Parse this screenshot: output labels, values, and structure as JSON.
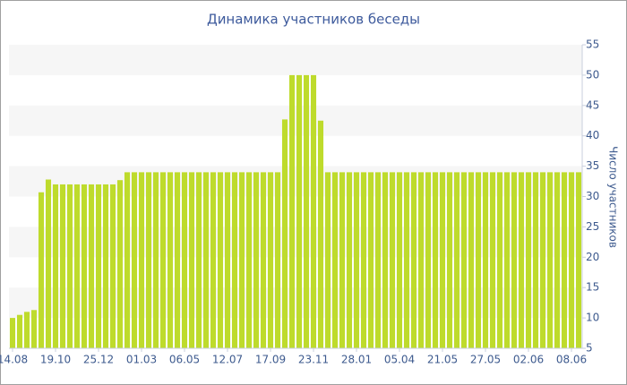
{
  "chart_data": {
    "type": "bar",
    "title": "Динамика участников беседы",
    "y_label": "Число участников",
    "categories": [
      "14.08",
      null,
      null,
      null,
      null,
      null,
      "19.10",
      null,
      null,
      null,
      null,
      null,
      "25.12",
      null,
      null,
      null,
      null,
      null,
      "01.03",
      null,
      null,
      null,
      null,
      null,
      "06.05",
      null,
      null,
      null,
      null,
      null,
      "12.07",
      null,
      null,
      null,
      null,
      null,
      "17.09",
      null,
      null,
      null,
      null,
      null,
      "23.11",
      null,
      null,
      null,
      null,
      null,
      "28.01",
      null,
      null,
      null,
      null,
      null,
      "05.04",
      null,
      null,
      null,
      null,
      null,
      "21.05",
      null,
      null,
      null,
      null,
      null,
      "27.05",
      null,
      null,
      null,
      null,
      null,
      "02.06",
      null,
      null,
      null,
      null,
      null,
      "08.06",
      null
    ],
    "values": [
      10,
      10.5,
      11,
      11.3,
      30.7,
      32.8,
      32,
      32,
      32,
      32,
      32,
      32,
      32,
      32,
      32,
      32.7,
      34,
      34,
      34,
      34,
      34,
      34,
      34,
      34,
      34,
      34,
      34,
      34,
      34,
      34,
      34,
      34,
      34,
      34,
      34,
      34,
      34,
      34,
      42.7,
      50,
      50,
      50,
      50,
      42.5,
      34,
      34,
      34,
      34,
      34,
      34,
      34,
      34,
      34,
      34,
      34,
      34,
      34,
      34,
      34,
      34,
      34,
      34,
      34,
      34,
      34,
      34,
      34,
      34,
      34,
      34,
      34,
      34,
      34,
      34,
      34,
      34,
      34,
      34,
      34,
      34
    ],
    "color": "#bedb2c",
    "ylim": [
      5,
      55
    ],
    "yticks": [
      5,
      10,
      15,
      20,
      25,
      30,
      35,
      40,
      45,
      50,
      55
    ],
    "grid": true,
    "y_axis_side": "right"
  }
}
